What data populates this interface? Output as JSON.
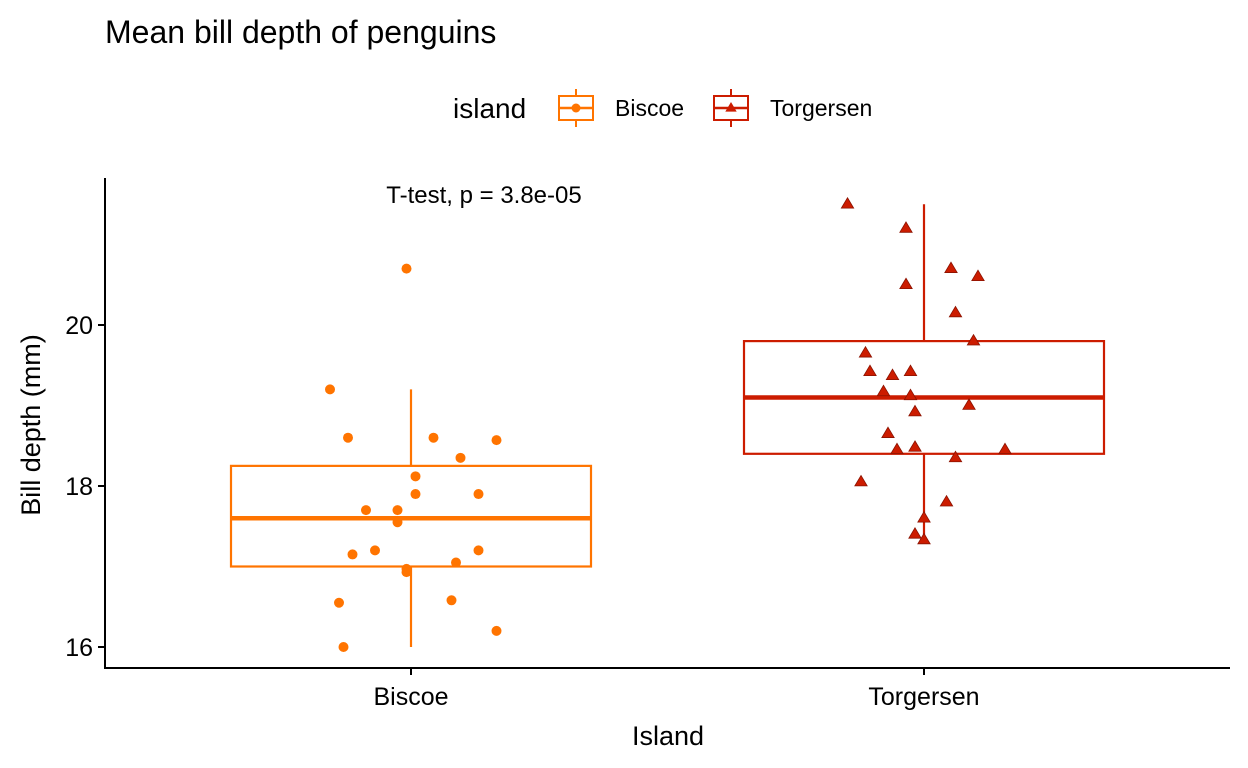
{
  "chart_data": {
    "type": "box",
    "title": "Mean bill depth of penguins",
    "xlabel": "Island",
    "ylabel": "Bill depth (mm)",
    "categories": [
      "Biscoe",
      "Torgersen"
    ],
    "ylim": [
      15.75,
      21.8
    ],
    "yticks": [
      16,
      18,
      20
    ],
    "grid": false,
    "legend": {
      "title": "island",
      "placement": "top",
      "entries": [
        "Biscoe",
        "Torgersen"
      ]
    },
    "annotation": "T-test, p = 3.8e-05",
    "colors": {
      "Biscoe": "#FF7400",
      "Torgersen": "#CC1C00"
    },
    "series": [
      {
        "name": "Biscoe",
        "marker": "circle",
        "box": {
          "whisker_low": 16.0,
          "q1": 17.0,
          "median": 17.6,
          "q3": 18.25,
          "whisker_high": 19.2
        },
        "points": [
          [
            -0.18,
            19.2
          ],
          [
            -0.14,
            18.6
          ],
          [
            -0.01,
            20.7
          ],
          [
            0.05,
            18.6
          ],
          [
            0.11,
            18.35
          ],
          [
            0.19,
            18.57
          ],
          [
            0.01,
            18.12
          ],
          [
            0.01,
            17.9
          ],
          [
            0.15,
            17.9
          ],
          [
            -0.1,
            17.7
          ],
          [
            -0.03,
            17.7
          ],
          [
            -0.03,
            17.55
          ],
          [
            -0.08,
            17.2
          ],
          [
            -0.13,
            17.15
          ],
          [
            0.15,
            17.2
          ],
          [
            0.1,
            17.05
          ],
          [
            -0.01,
            16.97
          ],
          [
            -0.01,
            16.93
          ],
          [
            -0.16,
            16.55
          ],
          [
            0.09,
            16.58
          ],
          [
            0.19,
            16.2
          ],
          [
            -0.15,
            16.0
          ]
        ]
      },
      {
        "name": "Torgersen",
        "marker": "triangle",
        "box": {
          "whisker_low": 17.3,
          "q1": 18.4,
          "median": 19.1,
          "q3": 19.8,
          "whisker_high": 21.5
        },
        "points": [
          [
            -0.17,
            21.5
          ],
          [
            -0.04,
            21.2
          ],
          [
            -0.04,
            20.5
          ],
          [
            0.06,
            20.7
          ],
          [
            0.12,
            20.6
          ],
          [
            0.07,
            20.15
          ],
          [
            0.11,
            19.8
          ],
          [
            -0.13,
            19.65
          ],
          [
            -0.12,
            19.42
          ],
          [
            -0.07,
            19.37
          ],
          [
            -0.03,
            19.42
          ],
          [
            -0.09,
            19.17
          ],
          [
            -0.03,
            19.12
          ],
          [
            -0.02,
            18.92
          ],
          [
            0.1,
            19.0
          ],
          [
            -0.08,
            18.65
          ],
          [
            -0.06,
            18.45
          ],
          [
            -0.02,
            18.48
          ],
          [
            0.07,
            18.35
          ],
          [
            0.18,
            18.45
          ],
          [
            -0.14,
            18.05
          ],
          [
            0.05,
            17.8
          ],
          [
            0.0,
            17.6
          ],
          [
            -0.02,
            17.4
          ],
          [
            0.0,
            17.33
          ]
        ]
      }
    ]
  }
}
